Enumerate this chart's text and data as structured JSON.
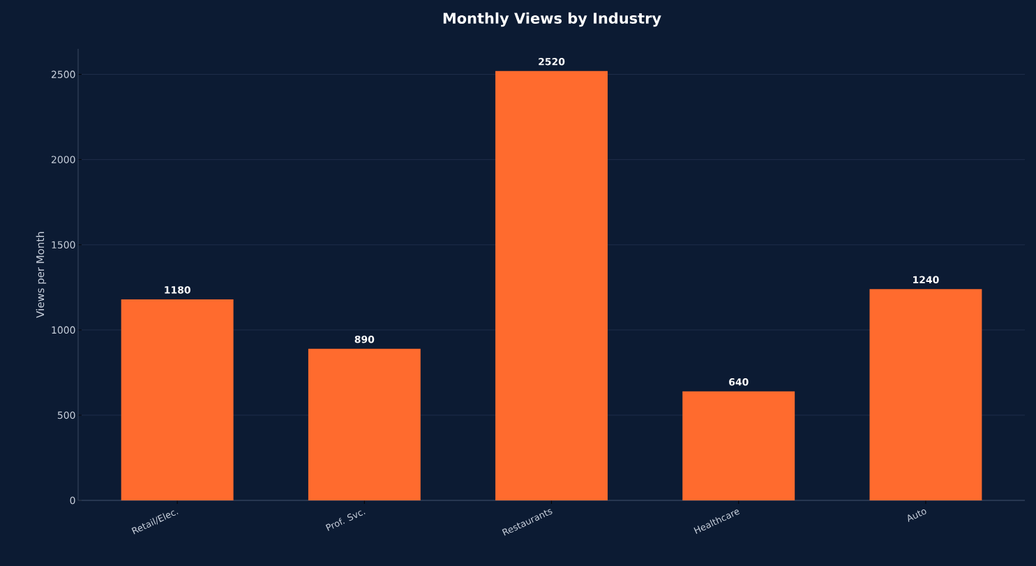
{
  "chart_data": {
    "type": "bar",
    "title": "Monthly Views by Industry",
    "ylabel": "Views per Month",
    "categories": [
      "Retail/Elec.",
      "Prof. Svc.",
      "Restaurants",
      "Healthcare",
      "Auto"
    ],
    "values": [
      1180,
      890,
      2520,
      640,
      1240
    ],
    "color": "#ff6b2e",
    "ylim": [
      0,
      2650
    ],
    "yticks": [
      0,
      500,
      1000,
      1500,
      2000,
      2500
    ],
    "grid": "y",
    "data_labels": true
  }
}
